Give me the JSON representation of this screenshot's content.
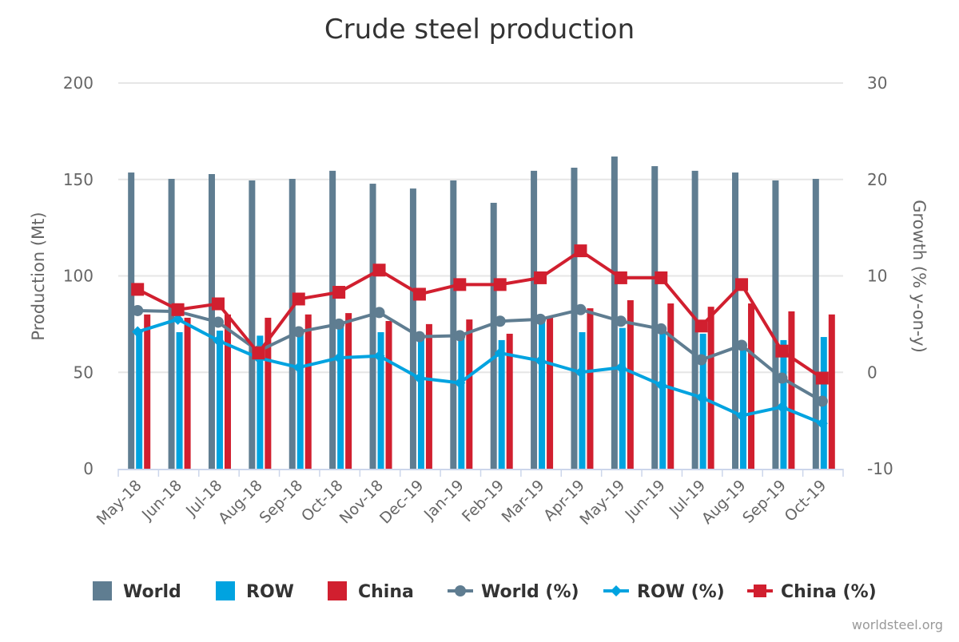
{
  "chart_data": {
    "type": "bar+line",
    "title": "Crude steel production",
    "ylabel": "Production (Mt)",
    "y2label": "Growth (% y-on-y)",
    "ylim": [
      0,
      200
    ],
    "y2lim": [
      -10,
      30
    ],
    "yticks": [
      0,
      50,
      100,
      150,
      200
    ],
    "y2ticks": [
      -10,
      0,
      10,
      20,
      30
    ],
    "grid": true,
    "legend_position": "bottom",
    "categories": [
      "May-18",
      "Jun-18",
      "Jul-18",
      "Aug-18",
      "Sep-18",
      "Oct-18",
      "Nov-18",
      "Dec-19",
      "Jan-19",
      "Feb-19",
      "Mar-19",
      "Apr-19",
      "May-19",
      "Jun-19",
      "Jul-19",
      "Aug-19",
      "Sep-19",
      "Oct-19"
    ],
    "bar_series": [
      {
        "name": "World",
        "color": "#5f7d91",
        "values": [
          153.6,
          150.3,
          152.8,
          149.5,
          150.3,
          154.5,
          147.8,
          145.3,
          149.5,
          137.9,
          154.5,
          156.1,
          161.9,
          156.9,
          154.5,
          153.6,
          149.5,
          150.3
        ]
      },
      {
        "name": "ROW",
        "color": "#00a3e0",
        "values": [
          71.0,
          70.8,
          71.6,
          69.0,
          70.0,
          74.5,
          70.8,
          69.0,
          69.0,
          66.7,
          77.0,
          70.8,
          73.0,
          72.0,
          70.0,
          62.0,
          66.7,
          68.3
        ]
      },
      {
        "name": "China",
        "color": "#d11f2f",
        "values": [
          80.0,
          78.3,
          80.0,
          78.3,
          80.0,
          80.7,
          76.6,
          75.0,
          77.4,
          70.0,
          79.0,
          83.2,
          87.4,
          85.7,
          84.0,
          85.7,
          81.6,
          80.0
        ]
      }
    ],
    "line_series": [
      {
        "name": "World (%)",
        "color": "#5f7d91",
        "marker": "circle",
        "values": [
          6.4,
          6.3,
          5.2,
          2.2,
          4.2,
          5.0,
          6.2,
          3.7,
          3.8,
          5.3,
          5.5,
          6.5,
          5.3,
          4.5,
          1.3,
          2.8,
          -0.6,
          -3.0
        ]
      },
      {
        "name": "ROW (%)",
        "color": "#00a3e0",
        "marker": "diamond",
        "values": [
          4.2,
          5.5,
          3.3,
          1.5,
          0.5,
          1.5,
          1.7,
          -0.6,
          -1.1,
          2.0,
          1.2,
          0.0,
          0.5,
          -1.3,
          -2.6,
          -4.5,
          -3.6,
          -5.3
        ]
      },
      {
        "name": "China (%)",
        "color": "#d11f2f",
        "marker": "square",
        "values": [
          8.6,
          6.5,
          7.1,
          2.0,
          7.6,
          8.3,
          10.6,
          8.1,
          9.1,
          9.1,
          9.8,
          12.6,
          9.8,
          9.8,
          4.8,
          9.1,
          2.2,
          -0.6
        ]
      }
    ],
    "credit": "worldsteel.org"
  }
}
